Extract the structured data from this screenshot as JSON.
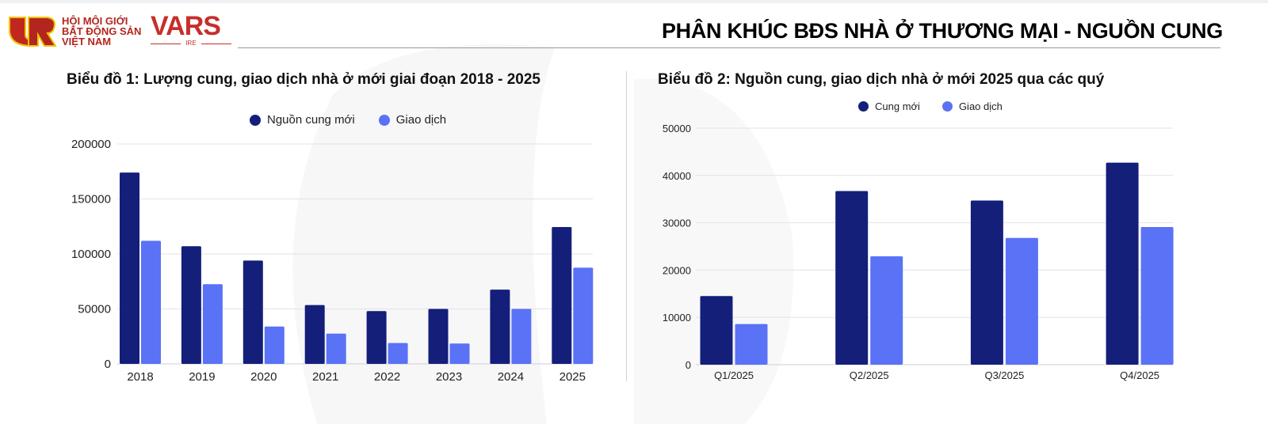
{
  "header": {
    "logo_text": [
      "HỘI MÔI GIỚI",
      "BẤT ĐỘNG SẢN",
      "VIỆT NAM"
    ],
    "brand": "VARS",
    "brand_sub": "IRE",
    "title": "PHÂN KHÚC BĐS NHÀ Ở THƯƠNG MẠI - NGUỒN CUNG"
  },
  "colors": {
    "supply": "#141f7a",
    "transactions": "#5a72f5",
    "grid": "#e3e3e8"
  },
  "chart_data": [
    {
      "type": "bar",
      "title": "Biểu đồ 1: Lượng cung, giao dịch nhà ở mới giai đoạn 2018 - 2025",
      "categories": [
        "2018",
        "2019",
        "2020",
        "2021",
        "2022",
        "2023",
        "2024",
        "2025"
      ],
      "series": [
        {
          "name": "Nguồn cung mới",
          "values": [
            174000,
            107000,
            94000,
            53500,
            48000,
            50000,
            67500,
            124500
          ]
        },
        {
          "name": "Giao dịch",
          "values": [
            112000,
            72500,
            34000,
            27500,
            19000,
            18500,
            50000,
            87500
          ]
        }
      ],
      "yticks": [
        "0",
        "50000",
        "100000",
        "150000",
        "200000"
      ],
      "ylim": [
        0,
        200000
      ],
      "grid": true,
      "legend": "top-center"
    },
    {
      "type": "bar",
      "title": "Biểu đồ 2: Nguồn cung, giao dịch nhà ở mới 2025 qua các quý",
      "categories": [
        "Q1/2025",
        "Q2/2025",
        "Q3/2025",
        "Q4/2025"
      ],
      "series": [
        {
          "name": "Cung mới",
          "values": [
            14500,
            36700,
            34700,
            42700
          ]
        },
        {
          "name": "Giao dịch",
          "values": [
            8600,
            22900,
            26800,
            29100
          ]
        }
      ],
      "yticks": [
        "0",
        "10000",
        "20000",
        "30000",
        "40000",
        "50000"
      ],
      "ylim": [
        0,
        50000
      ],
      "grid": true,
      "legend": "top-center"
    }
  ]
}
